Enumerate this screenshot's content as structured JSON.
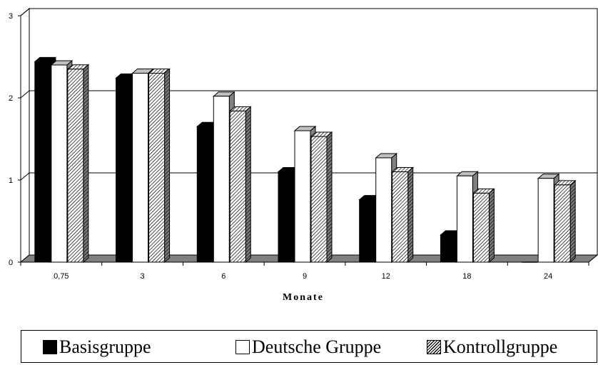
{
  "chart_data": {
    "type": "bar",
    "categories": [
      "0,75",
      "3",
      "6",
      "9",
      "12",
      "18",
      "24"
    ],
    "series": [
      {
        "name": "Basisgruppe",
        "color": "#000000",
        "pattern": "solid",
        "values": [
          2.44,
          2.24,
          1.65,
          1.1,
          0.76,
          0.33,
          0.0
        ]
      },
      {
        "name": "Deutsche Gruppe",
        "color": "#ffffff",
        "pattern": "empty",
        "values": [
          2.4,
          2.3,
          2.02,
          1.6,
          1.27,
          1.05,
          1.02
        ]
      },
      {
        "name": "Kontrollgruppe",
        "color": "#ffffff",
        "pattern": "hatched",
        "values": [
          2.35,
          2.3,
          1.84,
          1.53,
          1.1,
          0.84,
          0.94
        ]
      }
    ],
    "yticks": [
      "0",
      "1",
      "2",
      "3"
    ],
    "ylim": [
      0,
      3
    ],
    "title": "",
    "xlabel": "Monate",
    "ylabel": "",
    "grid": true,
    "legend_position": "bottom",
    "floor_color": "#808080"
  }
}
